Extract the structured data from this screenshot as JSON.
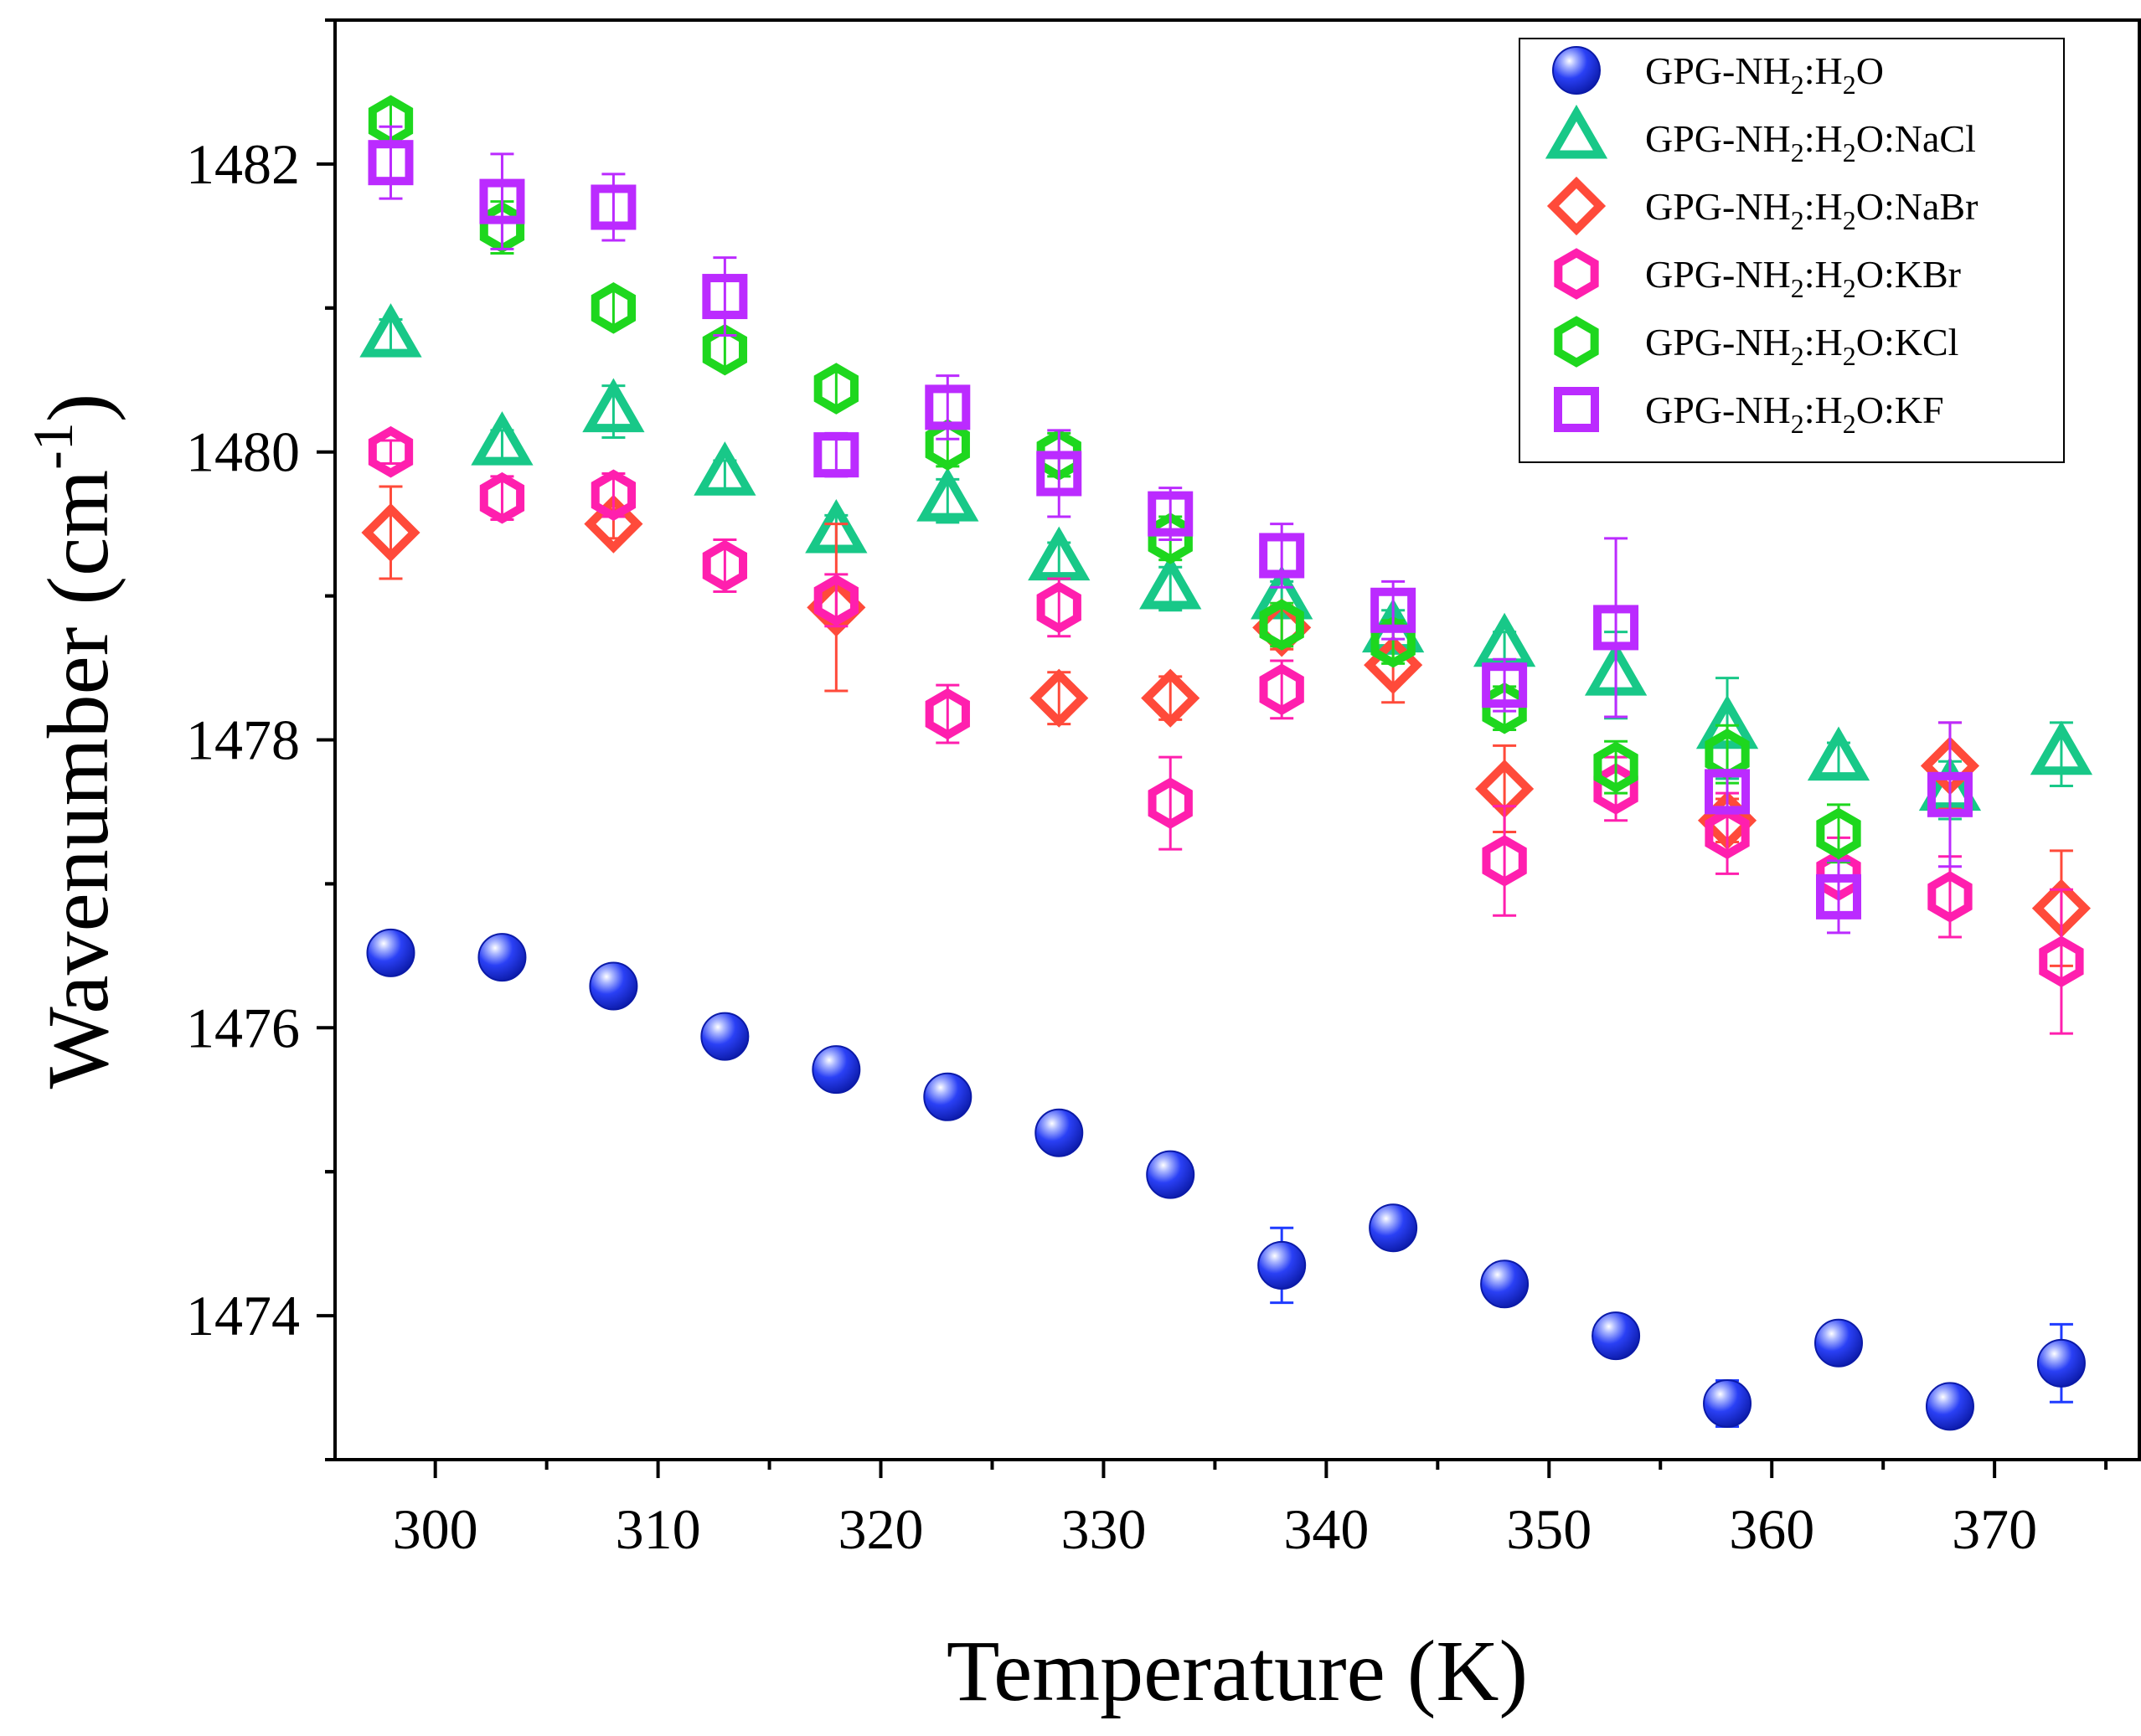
{
  "chart_data": {
    "type": "scatter",
    "title": "",
    "xlabel": "Temperature (K)",
    "ylabel": "Wavenumber (cm-1)",
    "ylabel_parts": {
      "main": "Wavenumber (cm",
      "sup": "-1",
      "close": ")"
    },
    "xlim": [
      295.5,
      376.5
    ],
    "ylim": [
      1473.0,
      1483.0
    ],
    "x_ticks": [
      300,
      310,
      320,
      330,
      340,
      350,
      360,
      370
    ],
    "y_ticks": [
      1474,
      1476,
      1478,
      1480,
      1482
    ],
    "grid": false,
    "legend_position": "top-right",
    "series": [
      {
        "name": "GPG-NH2:H2O",
        "label_parts": [
          [
            "GPG-NH",
            ""
          ],
          [
            "2",
            "sub"
          ],
          [
            ":H",
            ""
          ],
          [
            "2",
            "sub"
          ],
          [
            "O",
            ""
          ]
        ],
        "marker": "sphere",
        "color": "#1f3bff",
        "x": [
          298,
          303,
          308,
          313,
          318,
          323,
          328,
          333,
          338,
          343,
          348,
          353,
          358,
          363,
          368,
          373
        ],
        "y": [
          1476.52,
          1476.49,
          1476.29,
          1475.94,
          1475.71,
          1475.52,
          1475.27,
          1474.98,
          1474.35,
          1474.61,
          1474.22,
          1473.86,
          1473.39,
          1473.81,
          1473.37,
          1473.67
        ],
        "err": [
          0.06,
          0.06,
          0.06,
          0.06,
          0.06,
          0.06,
          0.06,
          0.06,
          0.26,
          0.06,
          0.06,
          0.06,
          0.16,
          0.06,
          0.06,
          0.27
        ]
      },
      {
        "name": "GPG-NH2:H2O:NaCl",
        "label_parts": [
          [
            "GPG-NH",
            ""
          ],
          [
            "2",
            "sub"
          ],
          [
            ":H",
            ""
          ],
          [
            "2",
            "sub"
          ],
          [
            "O:NaCl",
            ""
          ]
        ],
        "marker": "triangle",
        "color": "#18c888",
        "x": [
          298,
          303,
          308,
          313,
          318,
          323,
          328,
          333,
          338,
          343,
          348,
          353,
          358,
          363,
          368,
          373
        ],
        "y": [
          1480.8,
          1480.05,
          1480.28,
          1479.84,
          1479.44,
          1479.66,
          1479.25,
          1479.05,
          1478.98,
          1478.75,
          1478.65,
          1478.45,
          1478.08,
          1477.86,
          1477.65,
          1477.9
        ],
        "err": [
          0.12,
          0.1,
          0.18,
          0.1,
          0.12,
          0.15,
          0.12,
          0.15,
          0.12,
          0.15,
          0.1,
          0.3,
          0.35,
          0.12,
          0.2,
          0.22
        ]
      },
      {
        "name": "GPG-NH2:H2O:NaBr",
        "label_parts": [
          [
            "GPG-NH",
            ""
          ],
          [
            "2",
            "sub"
          ],
          [
            ":H",
            ""
          ],
          [
            "2",
            "sub"
          ],
          [
            "O:NaBr",
            ""
          ]
        ],
        "marker": "diamond",
        "color": "#ff4a3a",
        "x": [
          298,
          308,
          318,
          328,
          333,
          338,
          343,
          348,
          358,
          368,
          373
        ],
        "y": [
          1479.44,
          1479.5,
          1478.92,
          1478.29,
          1478.29,
          1478.78,
          1478.52,
          1477.66,
          1477.44,
          1477.82,
          1476.83
        ],
        "err": [
          0.32,
          0.1,
          0.58,
          0.18,
          0.15,
          0.15,
          0.26,
          0.3,
          0.15,
          0.3,
          0.4
        ]
      },
      {
        "name": "GPG-NH2:H2O:KBr",
        "label_parts": [
          [
            "GPG-NH",
            ""
          ],
          [
            "2",
            "sub"
          ],
          [
            ":H",
            ""
          ],
          [
            "2",
            "sub"
          ],
          [
            "O:KBr",
            ""
          ]
        ],
        "marker": "hexagon",
        "color": "#ff1fae",
        "x": [
          298,
          303,
          308,
          313,
          318,
          323,
          328,
          333,
          338,
          348,
          353,
          358,
          363,
          368,
          373
        ],
        "y": [
          1480.0,
          1479.68,
          1479.7,
          1479.21,
          1478.97,
          1478.18,
          1478.92,
          1477.56,
          1478.35,
          1477.16,
          1477.66,
          1477.35,
          1477.06,
          1476.91,
          1476.46
        ],
        "err": [
          0.08,
          0.15,
          0.15,
          0.18,
          0.18,
          0.2,
          0.2,
          0.32,
          0.2,
          0.38,
          0.22,
          0.28,
          0.26,
          0.28,
          0.5
        ]
      },
      {
        "name": "GPG-NH2:H2O:KCl",
        "label_parts": [
          [
            "GPG-NH",
            ""
          ],
          [
            "2",
            "sub"
          ],
          [
            ":H",
            ""
          ],
          [
            "2",
            "sub"
          ],
          [
            "O:KCl",
            ""
          ]
        ],
        "marker": "hexagon",
        "color": "#1ed71e",
        "x": [
          298,
          303,
          308,
          313,
          318,
          323,
          328,
          333,
          338,
          343,
          348,
          353,
          358,
          363
        ],
        "y": [
          1482.3,
          1481.56,
          1481.0,
          1480.71,
          1480.44,
          1480.05,
          1479.98,
          1479.4,
          1478.8,
          1478.68,
          1478.22,
          1477.81,
          1477.9,
          1477.35
        ],
        "err": [
          0.12,
          0.18,
          0.12,
          0.12,
          0.12,
          0.15,
          0.15,
          0.15,
          0.15,
          0.15,
          0.15,
          0.18,
          0.2,
          0.2
        ]
      },
      {
        "name": "GPG-NH2:H2O:KF",
        "label_parts": [
          [
            "GPG-NH",
            ""
          ],
          [
            "2",
            "sub"
          ],
          [
            ":H",
            ""
          ],
          [
            "2",
            "sub"
          ],
          [
            "O:KF",
            ""
          ]
        ],
        "marker": "square",
        "color": "#bb2bff",
        "x": [
          298,
          303,
          308,
          313,
          318,
          323,
          328,
          333,
          338,
          343,
          348,
          353,
          358,
          363,
          368
        ],
        "y": [
          1482.01,
          1481.74,
          1481.7,
          1481.08,
          1479.98,
          1480.31,
          1479.85,
          1479.57,
          1479.28,
          1478.9,
          1478.38,
          1478.78,
          1477.64,
          1476.91,
          1477.62
        ],
        "err": [
          0.25,
          0.33,
          0.23,
          0.27,
          0.15,
          0.22,
          0.3,
          0.18,
          0.22,
          0.2,
          0.18,
          0.62,
          0.15,
          0.25,
          0.5
        ]
      }
    ]
  }
}
